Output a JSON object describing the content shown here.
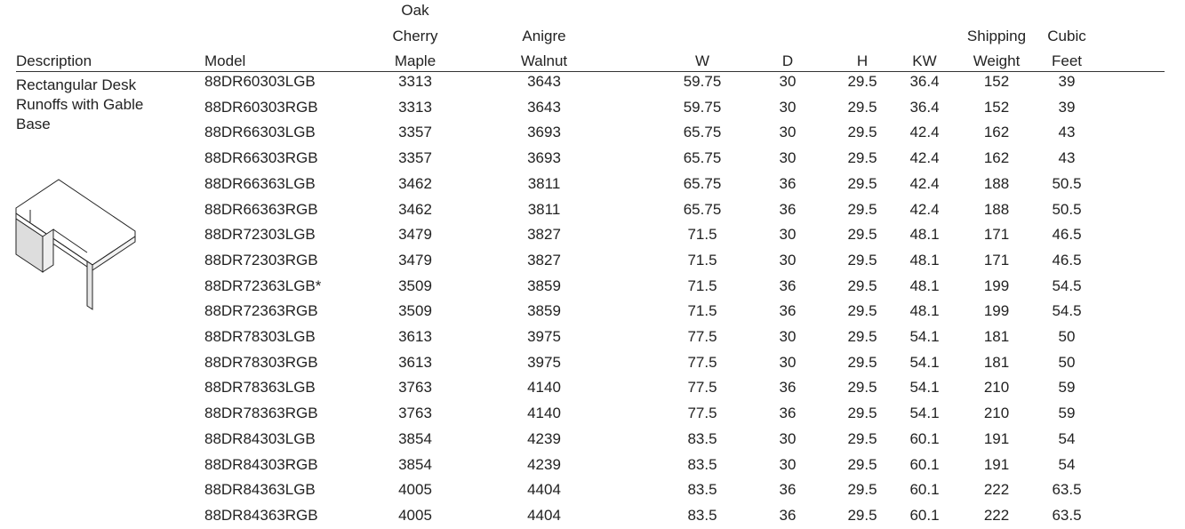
{
  "description": [
    "Rectangular Desk",
    "Runoffs with Gable",
    "Base"
  ],
  "table": {
    "headers": [
      [
        "Description"
      ],
      [
        "Model"
      ],
      [
        "Oak",
        "Cherry",
        "Maple"
      ],
      [
        "Anigre",
        "Walnut"
      ],
      [
        "W"
      ],
      [
        "D"
      ],
      [
        "H"
      ],
      [
        "KW"
      ],
      [
        "Shipping",
        "Weight"
      ],
      [
        "Cubic",
        "Feet"
      ]
    ],
    "rows": [
      [
        "88DR60303LGB",
        3313,
        3643,
        59.75,
        30,
        29.5,
        36.4,
        152,
        39
      ],
      [
        "88DR60303RGB",
        3313,
        3643,
        59.75,
        30,
        29.5,
        36.4,
        152,
        39
      ],
      [
        "88DR66303LGB",
        3357,
        3693,
        65.75,
        30,
        29.5,
        42.4,
        162,
        43
      ],
      [
        "88DR66303RGB",
        3357,
        3693,
        65.75,
        30,
        29.5,
        42.4,
        162,
        43
      ],
      [
        "88DR66363LGB",
        3462,
        3811,
        65.75,
        36,
        29.5,
        42.4,
        188,
        50.5
      ],
      [
        "88DR66363RGB",
        3462,
        3811,
        65.75,
        36,
        29.5,
        42.4,
        188,
        50.5
      ],
      [
        "88DR72303LGB",
        3479,
        3827,
        71.5,
        30,
        29.5,
        48.1,
        171,
        46.5
      ],
      [
        "88DR72303RGB",
        3479,
        3827,
        71.5,
        30,
        29.5,
        48.1,
        171,
        46.5
      ],
      [
        "88DR72363LGB*",
        3509,
        3859,
        71.5,
        36,
        29.5,
        48.1,
        199,
        54.5
      ],
      [
        "88DR72363RGB",
        3509,
        3859,
        71.5,
        36,
        29.5,
        48.1,
        199,
        54.5
      ],
      [
        "88DR78303LGB",
        3613,
        3975,
        77.5,
        30,
        29.5,
        54.1,
        181,
        50
      ],
      [
        "88DR78303RGB",
        3613,
        3975,
        77.5,
        30,
        29.5,
        54.1,
        181,
        50
      ],
      [
        "88DR78363LGB",
        3763,
        4140,
        77.5,
        36,
        29.5,
        54.1,
        210,
        59
      ],
      [
        "88DR78363RGB",
        3763,
        4140,
        77.5,
        36,
        29.5,
        54.1,
        210,
        59
      ],
      [
        "88DR84303LGB",
        3854,
        4239,
        83.5,
        30,
        29.5,
        60.1,
        191,
        54
      ],
      [
        "88DR84303RGB",
        3854,
        4239,
        83.5,
        30,
        29.5,
        60.1,
        191,
        54
      ],
      [
        "88DR84363LGB",
        4005,
        4404,
        83.5,
        36,
        29.5,
        60.1,
        222,
        63.5
      ],
      [
        "88DR84363RGB",
        4005,
        4404,
        83.5,
        36,
        29.5,
        60.1,
        222,
        63.5
      ]
    ]
  }
}
